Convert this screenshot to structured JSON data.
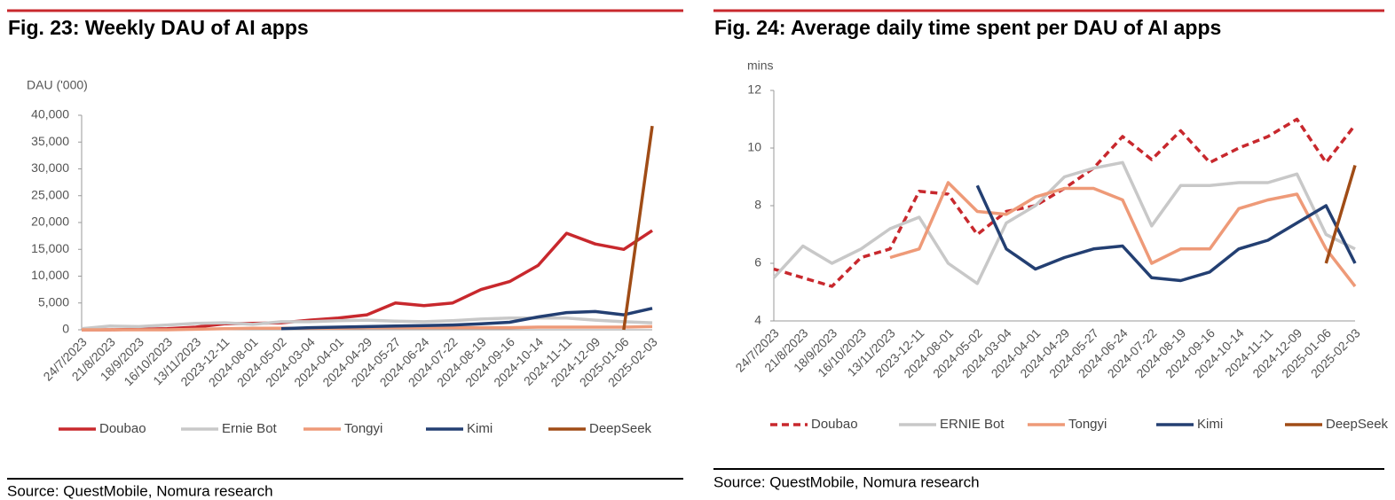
{
  "chart_data": [
    {
      "type": "line",
      "title": "Fig. 23: Weekly DAU of AI apps",
      "y_label": "DAU ('000)",
      "source": "Source: QuestMobile, Nomura research",
      "categories": [
        "24/7/2023",
        "21/8/2023",
        "18/9/2023",
        "16/10/2023",
        "13/11/2023",
        "2023-12-11",
        "2024-08-01",
        "2024-05-02",
        "2024-03-04",
        "2024-04-01",
        "2024-04-29",
        "2024-05-27",
        "2024-06-24",
        "2024-07-22",
        "2024-08-19",
        "2024-09-16",
        "2024-10-14",
        "2024-11-11",
        "2024-12-09",
        "2025-01-06",
        "2025-02-03"
      ],
      "ylim": [
        0,
        40000
      ],
      "yticks": [
        0,
        {
          "value": 5000,
          "label": "5,000"
        },
        {
          "value": 10000,
          "label": "10,000"
        },
        {
          "value": 15000,
          "label": "15,000"
        },
        {
          "value": 20000,
          "label": "20,000"
        },
        {
          "value": 25000,
          "label": "25,000"
        },
        {
          "value": 30000,
          "label": "30,000"
        },
        {
          "value": 35000,
          "label": "35,000"
        },
        {
          "value": 40000,
          "label": "40,000"
        }
      ],
      "series": [
        {
          "name": "Doubao",
          "color": "#c8282d",
          "values": [
            0,
            0,
            100,
            200,
            500,
            1100,
            1200,
            1300,
            1800,
            2200,
            2800,
            5000,
            4500,
            5000,
            7500,
            9000,
            12000,
            18000,
            16000,
            15000,
            18500
          ]
        },
        {
          "name": "Ernie Bot",
          "color": "#c8c8c8",
          "values": [
            200,
            700,
            600,
            900,
            1200,
            1300,
            1000,
            1500,
            1500,
            1700,
            1800,
            1600,
            1500,
            1700,
            2000,
            2200,
            2200,
            2200,
            1800,
            1500,
            1300
          ]
        },
        {
          "name": "Tongyi",
          "color": "#ee9a78",
          "values": [
            0,
            0,
            0,
            0,
            100,
            200,
            300,
            300,
            300,
            300,
            400,
            400,
            400,
            400,
            400,
            400,
            500,
            500,
            500,
            500,
            600
          ]
        },
        {
          "name": "Kimi",
          "color": "#233f72",
          "values": [
            null,
            null,
            null,
            null,
            null,
            null,
            null,
            200,
            400,
            500,
            600,
            700,
            800,
            900,
            1100,
            1400,
            2400,
            3200,
            3400,
            2800,
            4000
          ]
        },
        {
          "name": "DeepSeek",
          "color": "#a04c16",
          "values": [
            null,
            null,
            null,
            null,
            null,
            null,
            null,
            null,
            null,
            null,
            null,
            null,
            null,
            null,
            null,
            null,
            null,
            null,
            null,
            0,
            38000
          ]
        }
      ]
    },
    {
      "type": "line",
      "title": "Fig. 24: Average daily time spent per DAU of AI apps",
      "y_label": "mins",
      "source": "Source: QuestMobile, Nomura research",
      "categories": [
        "24/7/2023",
        "21/8/2023",
        "18/9/2023",
        "16/10/2023",
        "13/11/2023",
        "2023-12-11",
        "2024-08-01",
        "2024-05-02",
        "2024-03-04",
        "2024-04-01",
        "2024-04-29",
        "2024-05-27",
        "2024-06-24",
        "2024-07-22",
        "2024-08-19",
        "2024-09-16",
        "2024-10-14",
        "2024-11-11",
        "2024-12-09",
        "2025-01-06",
        "2025-02-03"
      ],
      "ylim": [
        4,
        12
      ],
      "yticks": [
        4,
        6,
        8,
        10,
        12
      ],
      "series": [
        {
          "name": "Doubao",
          "color": "#c8282d",
          "style": "dashed",
          "values": [
            5.8,
            5.5,
            5.2,
            6.2,
            6.5,
            8.5,
            8.4,
            7.0,
            7.8,
            8.0,
            8.6,
            9.3,
            10.4,
            9.6,
            10.6,
            9.5,
            10.0,
            10.4,
            11.0,
            9.5,
            10.8
          ]
        },
        {
          "name": "ERNIE Bot",
          "color": "#c8c8c8",
          "values": [
            5.5,
            6.6,
            6.0,
            6.5,
            7.2,
            7.6,
            6.0,
            5.3,
            7.4,
            8.0,
            9.0,
            9.3,
            9.5,
            7.3,
            8.7,
            8.7,
            8.8,
            8.8,
            9.1,
            7.0,
            6.5
          ]
        },
        {
          "name": "Tongyi",
          "color": "#ee9a78",
          "values": [
            null,
            null,
            null,
            null,
            6.2,
            6.5,
            8.8,
            7.8,
            7.7,
            8.3,
            8.6,
            8.6,
            8.2,
            6.0,
            6.5,
            6.5,
            7.9,
            8.2,
            8.4,
            6.5,
            5.2
          ]
        },
        {
          "name": "Kimi",
          "color": "#233f72",
          "values": [
            null,
            null,
            null,
            null,
            null,
            null,
            null,
            8.7,
            6.5,
            5.8,
            6.2,
            6.5,
            6.6,
            5.5,
            5.4,
            5.7,
            6.5,
            6.8,
            7.4,
            8.0,
            6.0
          ]
        },
        {
          "name": "DeepSeek",
          "color": "#a04c16",
          "values": [
            null,
            null,
            null,
            null,
            null,
            null,
            null,
            null,
            null,
            null,
            null,
            null,
            null,
            null,
            null,
            null,
            null,
            null,
            null,
            6.0,
            9.4
          ]
        }
      ]
    }
  ]
}
